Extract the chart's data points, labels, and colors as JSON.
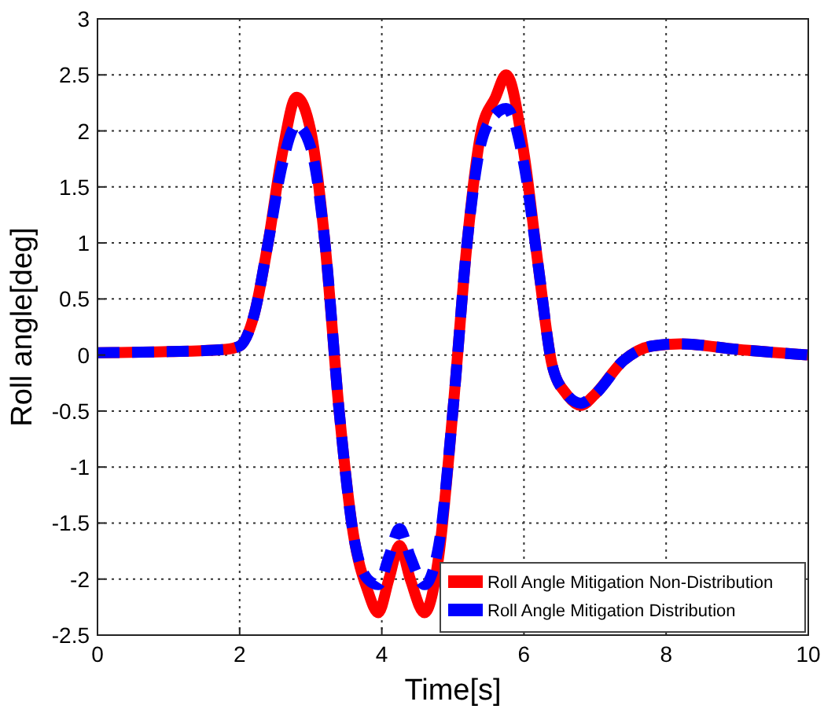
{
  "chart_data": {
    "type": "line",
    "xlabel": "Time[s]",
    "ylabel": "Roll angle[deg]",
    "xlim": [
      0,
      10
    ],
    "ylim": [
      -2.5,
      3
    ],
    "xticks": [
      0,
      2,
      4,
      6,
      8,
      10
    ],
    "yticks": [
      -2.5,
      -2,
      -1.5,
      -1,
      -0.5,
      0,
      0.5,
      1,
      1.5,
      2,
      2.5,
      3
    ],
    "grid": true,
    "legend": "bottom right",
    "series": [
      {
        "name": "Roll Angle Mitigation Non-Distribution",
        "color": "#ff0000",
        "line_style": "solid",
        "x": [
          0,
          1,
          1.8,
          2,
          2.2,
          2.4,
          2.6,
          2.8,
          3,
          3.2,
          3.4,
          3.6,
          3.8,
          3.95,
          4.1,
          4.25,
          4.4,
          4.6,
          4.8,
          5,
          5.2,
          5.4,
          5.6,
          5.75,
          6,
          6.2,
          6.4,
          6.6,
          6.8,
          7,
          7.4,
          7.8,
          8.2,
          9,
          10
        ],
        "values": [
          0.02,
          0.03,
          0.05,
          0.08,
          0.35,
          1,
          1.8,
          2.3,
          2,
          1,
          -0.5,
          -1.6,
          -2.1,
          -2.3,
          -2,
          -1.7,
          -2,
          -2.3,
          -1.8,
          -0.5,
          1,
          2,
          2.3,
          2.5,
          1.8,
          0.8,
          -0.1,
          -0.35,
          -0.45,
          -0.35,
          -0.05,
          0.08,
          0.1,
          0.05,
          0
        ]
      },
      {
        "name": "Roll Angle Mitigation Distribution",
        "color": "#0000ff",
        "line_style": "dashed",
        "x": [
          0,
          1,
          1.8,
          2,
          2.2,
          2.4,
          2.6,
          2.8,
          3,
          3.2,
          3.4,
          3.6,
          3.8,
          3.95,
          4.1,
          4.25,
          4.4,
          4.6,
          4.8,
          5,
          5.2,
          5.4,
          5.6,
          5.75,
          6,
          6.2,
          6.4,
          6.6,
          6.8,
          7,
          7.4,
          7.8,
          8.2,
          9,
          10
        ],
        "values": [
          0.02,
          0.03,
          0.05,
          0.08,
          0.35,
          1,
          1.7,
          2.05,
          1.85,
          1,
          -0.5,
          -1.6,
          -2,
          -2.05,
          -1.8,
          -1.55,
          -1.8,
          -2.05,
          -1.7,
          -0.5,
          1,
          1.9,
          2.15,
          2.2,
          1.7,
          0.8,
          -0.1,
          -0.35,
          -0.43,
          -0.35,
          -0.05,
          0.08,
          0.1,
          0.05,
          0
        ]
      }
    ]
  }
}
